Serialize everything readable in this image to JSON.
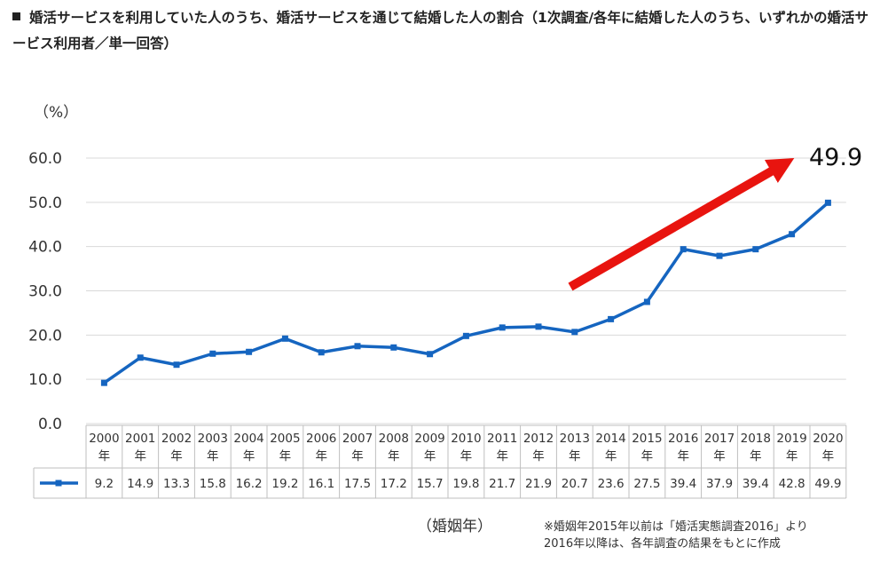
{
  "title": "婚活サービスを利用していた人のうち、婚活サービスを通じて結婚した人の割合（1次調査/各年に結婚した人のうち、いずれかの婚活サービス利用者／単一回答）",
  "chart_data": {
    "type": "line",
    "title": "婚活サービスを利用していた人のうち、婚活サービスを通じて結婚した人の割合（1次調査/各年に結婚した人のうち、いずれかの婚活サービス利用者／単一回答）",
    "ylabel": "（%）",
    "xlabel": "（婚姻年）",
    "ylim": [
      0,
      60
    ],
    "yticks": [
      "0.0",
      "10.0",
      "20.0",
      "30.0",
      "40.0",
      "50.0",
      "60.0"
    ],
    "year_suffix": "年",
    "categories": [
      "2000",
      "2001",
      "2002",
      "2003",
      "2004",
      "2005",
      "2006",
      "2007",
      "2008",
      "2009",
      "2010",
      "2011",
      "2012",
      "2013",
      "2014",
      "2015",
      "2016",
      "2017",
      "2018",
      "2019",
      "2020"
    ],
    "series": [
      {
        "name": "",
        "color": "#1565c0",
        "values": [
          9.2,
          14.9,
          13.3,
          15.8,
          16.2,
          19.2,
          16.1,
          17.5,
          17.2,
          15.7,
          19.8,
          21.7,
          21.9,
          20.7,
          23.6,
          27.5,
          39.4,
          37.9,
          39.4,
          42.8,
          49.9
        ]
      }
    ],
    "annotation": "49.9",
    "arrow_color": "#e8140f",
    "notes": [
      "※婚姻年2015年以前は「婚活実態調査2016」より",
      "2016年以降は、各年調査の結果をもとに作成"
    ],
    "grid": true
  }
}
